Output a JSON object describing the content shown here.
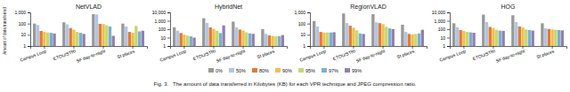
{
  "chart_data": [
    {
      "type": "bar",
      "title": "NetVLAD",
      "ylabel": "Amount of data transferred",
      "log": "y",
      "categories": [
        "Campus Loop",
        "ETOU/STRI",
        "SF day-to-night",
        "St places"
      ],
      "ylim": [
        1,
        1000
      ],
      "yticks": [
        1,
        10,
        100,
        {
          "value": 1000,
          "label": "1,000"
        }
      ],
      "grid": false,
      "legend": "bottom",
      "series": [
        {
          "name": "0%",
          "color": "#999999",
          "values": [
            100,
            130,
            700,
            100
          ]
        },
        {
          "name": "50%",
          "color": "#aec6e8",
          "values": [
            75,
            85,
            650,
            55
          ]
        },
        {
          "name": "80%",
          "color": "#e07b39",
          "values": [
            22,
            40,
            95,
            18
          ]
        },
        {
          "name": "90%",
          "color": "#f0c050",
          "values": [
            18,
            28,
            90,
            15
          ]
        },
        {
          "name": "95%",
          "color": "#c8d870",
          "values": [
            16,
            18,
            70,
            62
          ]
        },
        {
          "name": "97%",
          "color": "#7ab0d0",
          "values": [
            15,
            15,
            55,
            20
          ]
        },
        {
          "name": "99%",
          "color": "#9080b0",
          "values": [
            13,
            12,
            8,
            23
          ]
        }
      ]
    },
    {
      "type": "bar",
      "title": "HybridNet",
      "log": "y",
      "categories": [
        "Campus Loop",
        "ETOU/STRI",
        "SF day-to-night",
        "St places"
      ],
      "ylim": [
        1,
        10000
      ],
      "yticks": [
        1,
        10,
        100,
        {
          "value": 1000,
          "label": "1,000"
        },
        {
          "value": 10000,
          "label": "10,000"
        }
      ],
      "grid": false,
      "series": [
        {
          "name": "0%",
          "color": "#999999",
          "values": [
            170,
            2000,
            800,
            100
          ]
        },
        {
          "name": "50%",
          "color": "#aec6e8",
          "values": [
            65,
            550,
            160,
            28
          ]
        },
        {
          "name": "80%",
          "color": "#e07b39",
          "values": [
            35,
            160,
            90,
            18
          ]
        },
        {
          "name": "90%",
          "color": "#f0c050",
          "values": [
            22,
            110,
            70,
            16
          ]
        },
        {
          "name": "95%",
          "color": "#c8d870",
          "values": [
            17,
            65,
            42,
            14
          ]
        },
        {
          "name": "97%",
          "color": "#7ab0d0",
          "values": [
            14,
            35,
            32,
            15
          ]
        },
        {
          "name": "99%",
          "color": "#9080b0",
          "values": [
            10,
            280,
            28,
            20
          ]
        }
      ]
    },
    {
      "type": "bar",
      "title": "RegionVLAD",
      "log": "y",
      "categories": [
        "Campus Loop",
        "ETOU/STRI",
        "SF day-to-night",
        "St places"
      ],
      "ylim": [
        1,
        1000
      ],
      "yticks": [
        1,
        10,
        100,
        {
          "value": 1000,
          "label": "1,000"
        }
      ],
      "grid": false,
      "series": [
        {
          "name": "0%",
          "color": "#999999",
          "values": [
            170,
            800,
            700,
            80
          ]
        },
        {
          "name": "50%",
          "color": "#aec6e8",
          "values": [
            55,
            110,
            130,
            18
          ]
        },
        {
          "name": "80%",
          "color": "#e07b39",
          "values": [
            18,
            65,
            110,
            12
          ]
        },
        {
          "name": "90%",
          "color": "#f0c050",
          "values": [
            16,
            42,
            90,
            11
          ]
        },
        {
          "name": "95%",
          "color": "#c8d870",
          "values": [
            16,
            25,
            52,
            12
          ]
        },
        {
          "name": "97%",
          "color": "#7ab0d0",
          "values": [
            16,
            13,
            38,
            13
          ]
        },
        {
          "name": "99%",
          "color": "#9080b0",
          "values": [
            17,
            12,
            32,
            28
          ]
        }
      ]
    },
    {
      "type": "bar",
      "title": "HOG",
      "log": "y",
      "categories": [
        "Campus Loop",
        "ETOU/STRI",
        "SF day-to-night",
        "St places"
      ],
      "ylim": [
        1,
        10000
      ],
      "yticks": [
        1,
        10,
        100,
        {
          "value": 1000,
          "label": "1,000"
        },
        {
          "value": 10000,
          "label": "10,000"
        }
      ],
      "grid": false,
      "series": [
        {
          "name": "0%",
          "color": "#999999",
          "values": [
            500,
            5500,
            4500,
            500
          ]
        },
        {
          "name": "50%",
          "color": "#aec6e8",
          "values": [
            170,
            700,
            700,
            130
          ]
        },
        {
          "name": "80%",
          "color": "#e07b39",
          "values": [
            80,
            185,
            210,
            105
          ]
        },
        {
          "name": "90%",
          "color": "#f0c050",
          "values": [
            60,
            140,
            165,
            95
          ]
        },
        {
          "name": "95%",
          "color": "#c8d870",
          "values": [
            48,
            85,
            95,
            85
          ]
        },
        {
          "name": "97%",
          "color": "#7ab0d0",
          "values": [
            42,
            68,
            78,
            78
          ]
        },
        {
          "name": "99%",
          "color": "#9080b0",
          "values": [
            38,
            62,
            68,
            72
          ]
        }
      ]
    }
  ],
  "caption": "Fig. 3.   The amount of data transferred in Kilobytes (KB) for each VPR technique and JPEG compression ratio."
}
